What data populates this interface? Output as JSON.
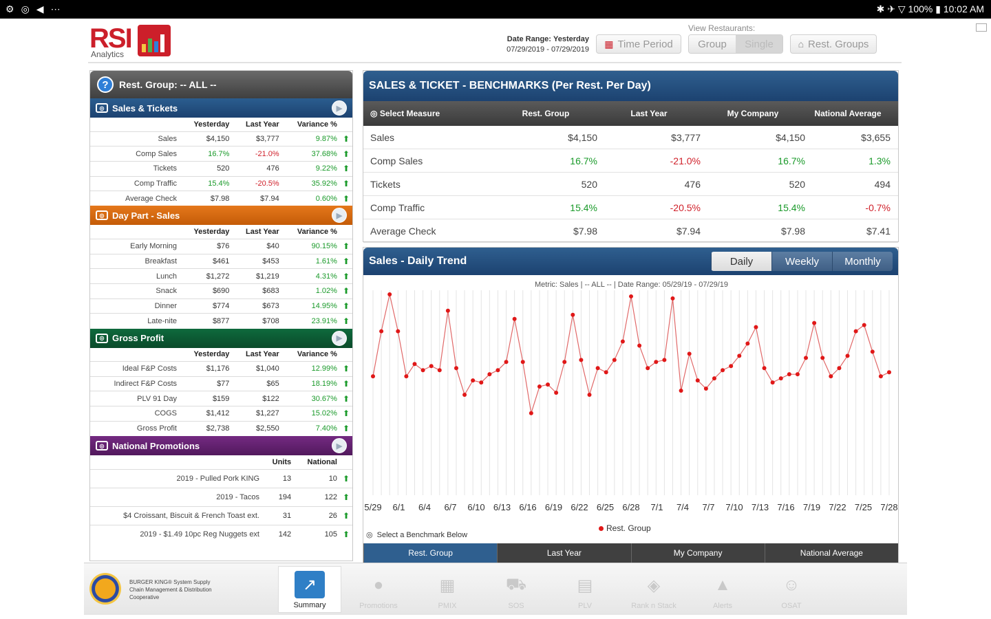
{
  "statusbar": {
    "left_icons": [
      "⚙",
      "◎",
      "◀",
      "⋯"
    ],
    "right": "✱ ✈ ▽ 100% ▮ 10:02 AM"
  },
  "header": {
    "logo_text": "RSI",
    "logo_sub": "Analytics",
    "date_range_label": "Date Range:",
    "date_range_value": "Yesterday",
    "date_range_dates": "07/29/2019 - 07/29/2019",
    "time_period_label": "Time Period",
    "view_restaurants_label": "View Restaurants:",
    "view_group_label": "Group",
    "view_single_label": "Single",
    "rest_groups_label": "Rest. Groups"
  },
  "left": {
    "title": "Rest. Group: -- ALL --",
    "sales_tickets": {
      "title": "Sales & Tickets",
      "headers": [
        "Yesterday",
        "Last Year",
        "Variance %"
      ],
      "rows": [
        {
          "label": "Sales",
          "yesterday": "$4,150",
          "last_year": "$3,777",
          "variance": "9.87%"
        },
        {
          "label": "Comp Sales",
          "yesterday": "16.7%",
          "last_year": "-21.0%",
          "variance": "37.68%"
        },
        {
          "label": "Tickets",
          "yesterday": "520",
          "last_year": "476",
          "variance": "9.22%"
        },
        {
          "label": "Comp Traffic",
          "yesterday": "15.4%",
          "last_year": "-20.5%",
          "variance": "35.92%"
        },
        {
          "label": "Average Check",
          "yesterday": "$7.98",
          "last_year": "$7.94",
          "variance": "0.60%"
        }
      ]
    },
    "day_part": {
      "title": "Day Part - Sales",
      "headers": [
        "Yesterday",
        "Last Year",
        "Variance %"
      ],
      "rows": [
        {
          "label": "Early Morning",
          "yesterday": "$76",
          "last_year": "$40",
          "variance": "90.15%"
        },
        {
          "label": "Breakfast",
          "yesterday": "$461",
          "last_year": "$453",
          "variance": "1.61%"
        },
        {
          "label": "Lunch",
          "yesterday": "$1,272",
          "last_year": "$1,219",
          "variance": "4.31%"
        },
        {
          "label": "Snack",
          "yesterday": "$690",
          "last_year": "$683",
          "variance": "1.02%"
        },
        {
          "label": "Dinner",
          "yesterday": "$774",
          "last_year": "$673",
          "variance": "14.95%"
        },
        {
          "label": "Late-nite",
          "yesterday": "$877",
          "last_year": "$708",
          "variance": "23.91%"
        }
      ]
    },
    "gross_profit": {
      "title": "Gross Profit",
      "headers": [
        "Yesterday",
        "Last Year",
        "Variance %"
      ],
      "rows": [
        {
          "label": "Ideal F&P Costs",
          "yesterday": "$1,176",
          "last_year": "$1,040",
          "variance": "12.99%"
        },
        {
          "label": "Indirect F&P Costs",
          "yesterday": "$77",
          "last_year": "$65",
          "variance": "18.19%"
        },
        {
          "label": "PLV 91 Day",
          "yesterday": "$159",
          "last_year": "$122",
          "variance": "30.67%"
        },
        {
          "label": "COGS",
          "yesterday": "$1,412",
          "last_year": "$1,227",
          "variance": "15.02%"
        },
        {
          "label": "Gross Profit",
          "yesterday": "$2,738",
          "last_year": "$2,550",
          "variance": "7.40%"
        }
      ]
    },
    "promotions": {
      "title": "National Promotions",
      "headers": [
        "Units",
        "National"
      ],
      "rows": [
        {
          "label": "2019 - Pulled Pork KING",
          "units": "13",
          "national": "10"
        },
        {
          "label": "2019 - Tacos",
          "units": "194",
          "national": "122"
        },
        {
          "label": "$4 Croissant, Biscuit & French Toast ext.",
          "units": "31",
          "national": "26"
        },
        {
          "label": "2019 - $1.49 10pc Reg Nuggets ext",
          "units": "142",
          "national": "105"
        }
      ]
    }
  },
  "bench": {
    "title": "SALES & TICKET - BENCHMARKS (Per Rest. Per Day)",
    "select_measure": "Select Measure",
    "columns": [
      "Rest. Group",
      "Last Year",
      "My Company",
      "National Average"
    ],
    "rows": [
      {
        "label": "Sales",
        "v": [
          "$4,150",
          "$3,777",
          "$4,150",
          "$3,655"
        ],
        "c": [
          "",
          "",
          "",
          ""
        ]
      },
      {
        "label": "Comp Sales",
        "v": [
          "16.7%",
          "-21.0%",
          "16.7%",
          "1.3%"
        ],
        "c": [
          "g",
          "r",
          "g",
          "g"
        ]
      },
      {
        "label": "Tickets",
        "v": [
          "520",
          "476",
          "520",
          "494"
        ],
        "c": [
          "",
          "",
          "",
          ""
        ]
      },
      {
        "label": "Comp Traffic",
        "v": [
          "15.4%",
          "-20.5%",
          "15.4%",
          "-0.7%"
        ],
        "c": [
          "g",
          "r",
          "g",
          "r"
        ]
      },
      {
        "label": "Average Check",
        "v": [
          "$7.98",
          "$7.94",
          "$7.98",
          "$7.41"
        ],
        "c": [
          "",
          "",
          "",
          ""
        ]
      }
    ]
  },
  "trend": {
    "title": "Sales - Daily Trend",
    "tabs": [
      "Daily",
      "Weekly",
      "Monthly"
    ],
    "active_tab": "Daily",
    "subtitle": "Metric: Sales  |  -- ALL --  |  Date Range: 05/29/19 - 07/29/19",
    "legend": "Rest. Group",
    "benchmark_label": "Select a Benchmark Below",
    "benchmarks": [
      "Rest. Group",
      "Last Year",
      "My Company",
      "National Average"
    ]
  },
  "chart_data": {
    "type": "line",
    "tick_labels": [
      "5/29",
      "6/1",
      "6/4",
      "6/7",
      "6/10",
      "6/13",
      "6/16",
      "6/19",
      "6/22",
      "6/25",
      "6/28",
      "7/1",
      "7/4",
      "7/7",
      "7/10",
      "7/13",
      "7/16",
      "7/19",
      "7/22",
      "7/25",
      "7/28"
    ],
    "series": [
      {
        "name": "Rest. Group",
        "color": "#e01818",
        "values": [
          0.58,
          0.8,
          0.98,
          0.8,
          0.58,
          0.64,
          0.61,
          0.63,
          0.61,
          0.9,
          0.62,
          0.49,
          0.56,
          0.55,
          0.59,
          0.61,
          0.65,
          0.86,
          0.65,
          0.4,
          0.53,
          0.54,
          0.5,
          0.65,
          0.88,
          0.66,
          0.49,
          0.62,
          0.6,
          0.66,
          0.75,
          0.97,
          0.73,
          0.62,
          0.65,
          0.66,
          0.96,
          0.51,
          0.69,
          0.56,
          0.52,
          0.57,
          0.61,
          0.63,
          0.68,
          0.74,
          0.82,
          0.62,
          0.55,
          0.57,
          0.59,
          0.59,
          0.67,
          0.84,
          0.67,
          0.58,
          0.62,
          0.68,
          0.8,
          0.83,
          0.7,
          0.58,
          0.6
        ]
      }
    ],
    "grid": true
  },
  "bottom_nav": {
    "bk_logo": "BURGER KING",
    "bk_text": "BURGER KING® System Supply Chain Management & Distribution Cooperative",
    "items": [
      {
        "label": "Summary",
        "icon": "chart-icon",
        "glyph": "↗"
      },
      {
        "label": "Promotions",
        "icon": "promotions-icon",
        "glyph": "●"
      },
      {
        "label": "PMIX",
        "icon": "pmix-icon",
        "glyph": "▦"
      },
      {
        "label": "SOS",
        "icon": "car-icon",
        "glyph": "⛟"
      },
      {
        "label": "PLV",
        "icon": "clipboard-icon",
        "glyph": "▤"
      },
      {
        "label": "Rank n Stack",
        "icon": "stack-icon",
        "glyph": "◈"
      },
      {
        "label": "Alerts",
        "icon": "alert-icon",
        "glyph": "▲"
      },
      {
        "label": "OSAT",
        "icon": "people-icon",
        "glyph": "☺"
      }
    ]
  }
}
